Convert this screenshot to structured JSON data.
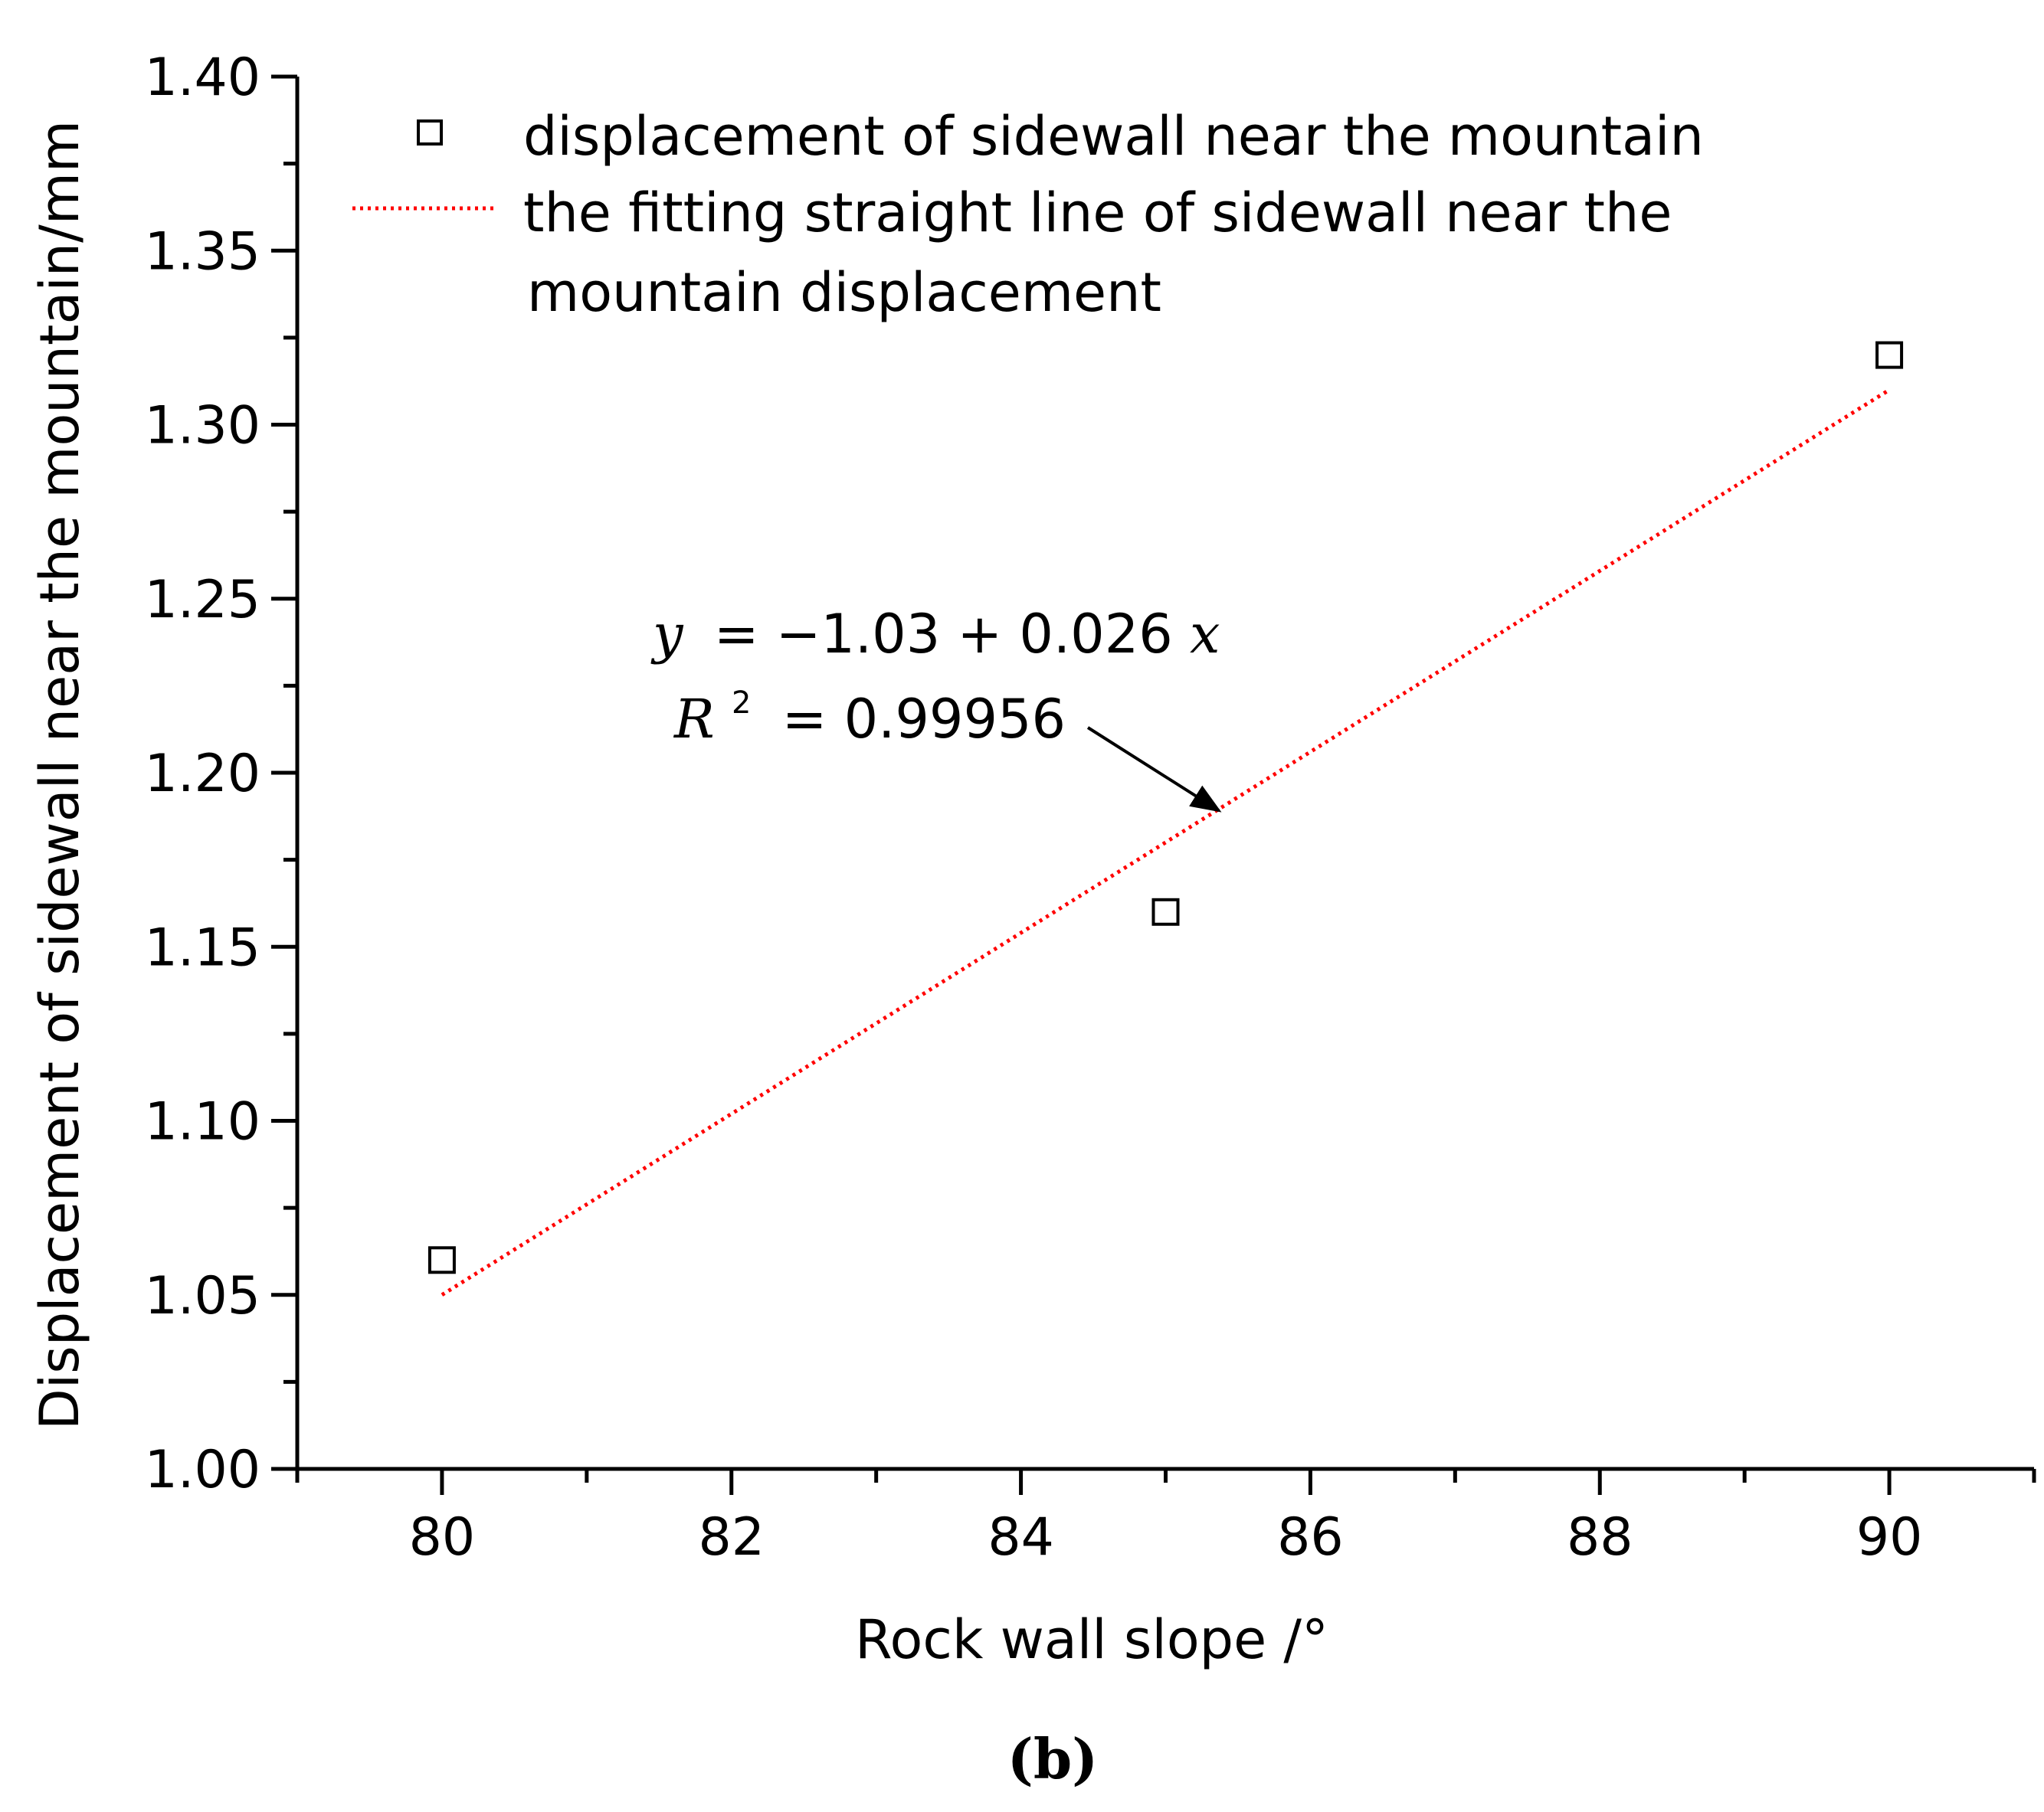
{
  "chart_data": {
    "type": "scatter",
    "xlabel": "Rock wall slope  /°",
    "ylabel": "Displacement of sidewall near the mountain/mm",
    "xlim": [
      79,
      91
    ],
    "ylim": [
      1.0,
      1.4
    ],
    "x_ticks": [
      80,
      82,
      84,
      86,
      88,
      90
    ],
    "x_tick_labels": [
      "80",
      "82",
      "84",
      "86",
      "88",
      "90"
    ],
    "y_ticks": [
      1.0,
      1.05,
      1.1,
      1.15,
      1.2,
      1.25,
      1.3,
      1.35,
      1.4
    ],
    "y_tick_labels": [
      "1.00",
      "1.05",
      "1.10",
      "1.15",
      "1.20",
      "1.25",
      "1.30",
      "1.35",
      "1.40"
    ],
    "grid": false,
    "legend_position": "top-left",
    "series": [
      {
        "name": "displacement of sidewall near the mountain",
        "kind": "scatter",
        "marker": "open-square",
        "color": "#000000",
        "x": [
          80,
          85,
          90
        ],
        "y": [
          1.06,
          1.16,
          1.32
        ]
      },
      {
        "name_lines": [
          "the fitting straight line of sidewall near the",
          "mountain displacement"
        ],
        "kind": "line",
        "style": "dotted",
        "color": "#ff0000",
        "x": [
          80,
          90
        ],
        "y": [
          1.05,
          1.31
        ]
      }
    ],
    "annotation": {
      "eq_y": "y",
      "eq_rhs": "= −1.03 + 0.026",
      "eq_x": "x",
      "r_sym": "R",
      "r_sup": "2",
      "r_rhs": "= 0.99956",
      "arrow_to": [
        85.4,
        1.19
      ]
    }
  },
  "caption": "(b)"
}
